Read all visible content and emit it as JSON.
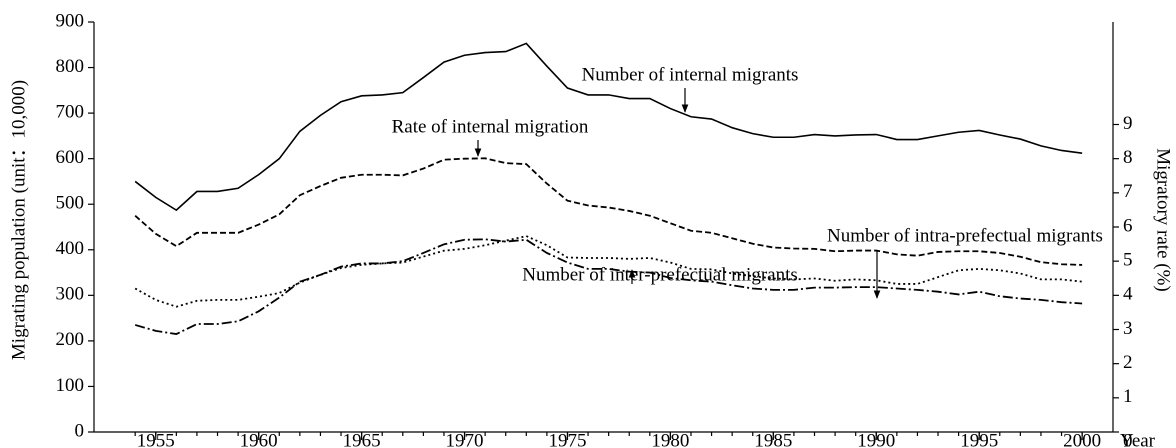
{
  "chart_data": {
    "type": "line",
    "x_label": "Year",
    "y_label": "Migrating population (unit：10,000)",
    "y2_label": "Migratory rate (%)",
    "x": [
      1954,
      1955,
      1956,
      1957,
      1958,
      1959,
      1960,
      1961,
      1962,
      1963,
      1964,
      1965,
      1966,
      1967,
      1968,
      1969,
      1970,
      1971,
      1972,
      1973,
      1974,
      1975,
      1976,
      1977,
      1978,
      1979,
      1980,
      1981,
      1982,
      1983,
      1984,
      1985,
      1986,
      1987,
      1988,
      1989,
      1990,
      1991,
      1992,
      1993,
      1994,
      1995,
      1996,
      1997,
      1998,
      1999,
      2000
    ],
    "xlim": [
      1952,
      2001.5
    ],
    "xticks": [
      1955,
      1960,
      1965,
      1970,
      1975,
      1980,
      1985,
      1990,
      1995,
      2000
    ],
    "ylim": [
      0,
      900
    ],
    "yticks": [
      0,
      100,
      200,
      300,
      400,
      500,
      600,
      700,
      800,
      900
    ],
    "y2lim": [
      0,
      12
    ],
    "y2ticks": [
      0,
      1,
      2,
      3,
      4,
      5,
      6,
      7,
      8,
      9
    ],
    "series": [
      {
        "name": "Number of internal migrants",
        "color": "#000000",
        "style": "solid",
        "values": [
          550,
          515,
          487,
          528,
          528,
          535,
          565,
          600,
          660,
          695,
          725,
          738,
          740,
          745,
          778,
          812,
          827,
          833,
          835,
          853,
          803,
          755,
          740,
          740,
          732,
          732,
          710,
          692,
          687,
          668,
          655,
          647,
          647,
          653,
          650,
          652,
          653,
          642,
          642,
          650,
          658,
          662,
          652,
          643,
          628,
          618,
          612
        ]
      },
      {
        "name": "Rate of internal migration",
        "color": "#000000",
        "style": "dashed",
        "axis": "y2",
        "values": [
          6.33,
          5.8,
          5.44,
          5.83,
          5.83,
          5.83,
          6.07,
          6.37,
          6.93,
          7.2,
          7.44,
          7.53,
          7.53,
          7.51,
          7.71,
          7.97,
          8.0,
          8.01,
          7.87,
          7.84,
          7.27,
          6.77,
          6.63,
          6.57,
          6.47,
          6.33,
          6.11,
          5.89,
          5.83,
          5.67,
          5.51,
          5.4,
          5.37,
          5.36,
          5.29,
          5.31,
          5.31,
          5.2,
          5.16,
          5.27,
          5.29,
          5.29,
          5.24,
          5.13,
          4.97,
          4.91,
          4.89
        ]
      },
      {
        "name": "Number of intra-prefectual migrants",
        "color": "#000000",
        "style": "dotted",
        "values": [
          315,
          290,
          275,
          288,
          290,
          290,
          297,
          305,
          328,
          345,
          360,
          367,
          370,
          372,
          385,
          398,
          402,
          410,
          420,
          430,
          410,
          383,
          382,
          382,
          380,
          382,
          372,
          358,
          357,
          348,
          342,
          337,
          335,
          337,
          332,
          335,
          333,
          325,
          325,
          340,
          355,
          358,
          355,
          348,
          335,
          335,
          330
        ]
      },
      {
        "name": "Number of inter-prefectual migrants",
        "color": "#000000",
        "style": "dashdot",
        "values": [
          235,
          222,
          215,
          237,
          237,
          243,
          265,
          295,
          330,
          345,
          363,
          370,
          370,
          375,
          393,
          412,
          422,
          423,
          418,
          422,
          393,
          372,
          358,
          358,
          352,
          350,
          338,
          333,
          330,
          322,
          315,
          312,
          312,
          317,
          317,
          318,
          318,
          315,
          312,
          308,
          302,
          308,
          298,
          293,
          290,
          285,
          282
        ]
      }
    ]
  }
}
